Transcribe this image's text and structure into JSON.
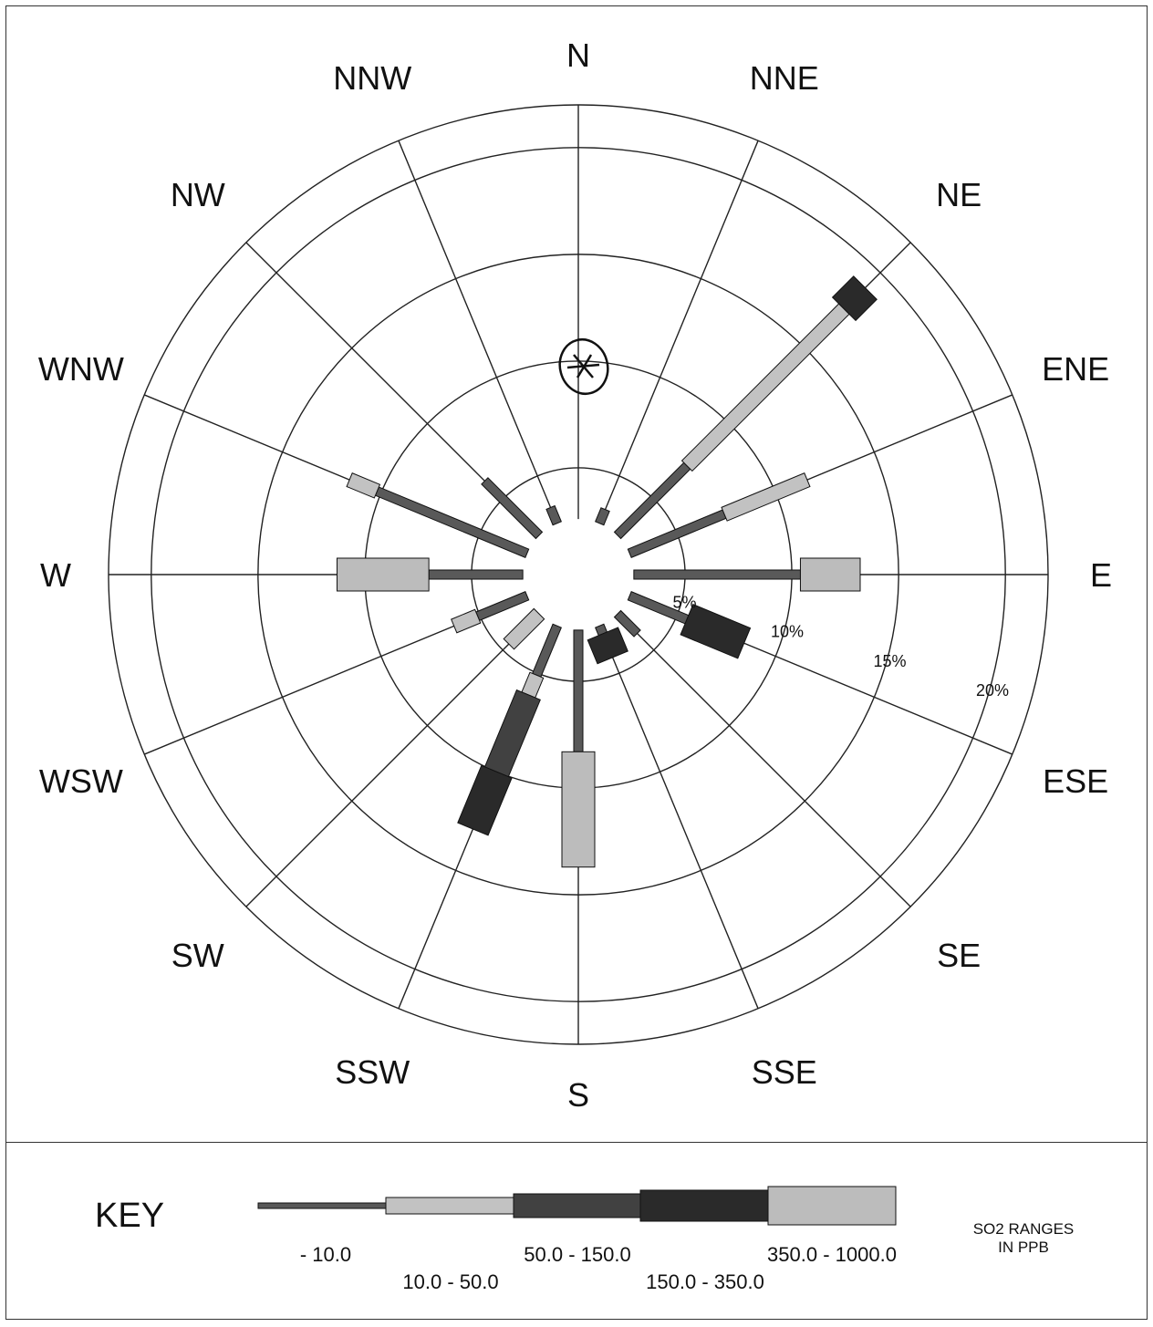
{
  "chart_data": {
    "type": "wind-rose",
    "directions": [
      "N",
      "NNE",
      "NE",
      "ENE",
      "E",
      "ESE",
      "SE",
      "SSE",
      "S",
      "SSW",
      "SW",
      "WSW",
      "W",
      "WNW",
      "NW",
      "NNW"
    ],
    "radial_ticks": [
      "5%",
      "10%",
      "15%",
      "20%"
    ],
    "radial_max": 22,
    "calm_ring": 2.6,
    "ranges": [
      "- 10.0",
      "10.0 - 50.0",
      "50.0 - 150.0",
      "150.0 - 350.0",
      "350.0 - 1000.0"
    ],
    "range_colors": [
      "#595959",
      "#c2c2c2",
      "#414141",
      "#2a2a2a",
      "#bcbcbc"
    ],
    "series": [
      {
        "direction": "N",
        "segments": []
      },
      {
        "direction": "NNE",
        "segments": [
          {
            "range": 0,
            "from": 2.6,
            "to": 3.3
          }
        ]
      },
      {
        "direction": "NE",
        "segments": [
          {
            "range": 0,
            "from": 2.6,
            "to": 7.2
          },
          {
            "range": 1,
            "from": 7.2,
            "to": 17.6
          },
          {
            "range": 3,
            "from": 17.6,
            "to": 19.0
          }
        ]
      },
      {
        "direction": "ENE",
        "segments": [
          {
            "range": 0,
            "from": 2.6,
            "to": 7.4
          },
          {
            "range": 1,
            "from": 7.4,
            "to": 11.6
          }
        ]
      },
      {
        "direction": "E",
        "segments": [
          {
            "range": 0,
            "from": 2.6,
            "to": 10.4
          },
          {
            "range": 4,
            "from": 10.4,
            "to": 13.2
          }
        ]
      },
      {
        "direction": "ESE",
        "segments": [
          {
            "range": 0,
            "from": 2.6,
            "to": 5.5
          },
          {
            "range": 3,
            "from": 5.5,
            "to": 8.4
          }
        ]
      },
      {
        "direction": "SE",
        "segments": [
          {
            "range": 0,
            "from": 2.6,
            "to": 3.9
          }
        ]
      },
      {
        "direction": "SSE",
        "segments": [
          {
            "range": 0,
            "from": 2.6,
            "to": 3.0
          },
          {
            "range": 3,
            "from": 3.0,
            "to": 4.2
          }
        ]
      },
      {
        "direction": "S",
        "segments": [
          {
            "range": 0,
            "from": 2.6,
            "to": 8.3
          },
          {
            "range": 4,
            "from": 8.3,
            "to": 13.7
          }
        ]
      },
      {
        "direction": "SSW",
        "segments": [
          {
            "range": 0,
            "from": 2.6,
            "to": 5.1
          },
          {
            "range": 1,
            "from": 5.1,
            "to": 6.1
          },
          {
            "range": 2,
            "from": 6.1,
            "to": 10.0
          },
          {
            "range": 3,
            "from": 10.0,
            "to": 12.9
          }
        ]
      },
      {
        "direction": "SW",
        "segments": [
          {
            "range": 1,
            "from": 2.6,
            "to": 4.6
          }
        ]
      },
      {
        "direction": "WSW",
        "segments": [
          {
            "range": 0,
            "from": 2.6,
            "to": 5.1
          },
          {
            "range": 1,
            "from": 5.1,
            "to": 6.3
          }
        ]
      },
      {
        "direction": "W",
        "segments": [
          {
            "range": 0,
            "from": 2.6,
            "to": 7.0
          },
          {
            "range": 4,
            "from": 7.0,
            "to": 11.3
          }
        ]
      },
      {
        "direction": "WNW",
        "segments": [
          {
            "range": 0,
            "from": 2.6,
            "to": 10.2
          },
          {
            "range": 1,
            "from": 10.2,
            "to": 11.6
          }
        ]
      },
      {
        "direction": "NW",
        "segments": [
          {
            "range": 0,
            "from": 2.6,
            "to": 6.2
          }
        ]
      },
      {
        "direction": "NNW",
        "segments": [
          {
            "range": 0,
            "from": 2.6,
            "to": 3.4
          }
        ]
      }
    ]
  },
  "key": {
    "title": "KEY",
    "note_line1": "SO2 RANGES",
    "note_line2": "IN PPB"
  }
}
